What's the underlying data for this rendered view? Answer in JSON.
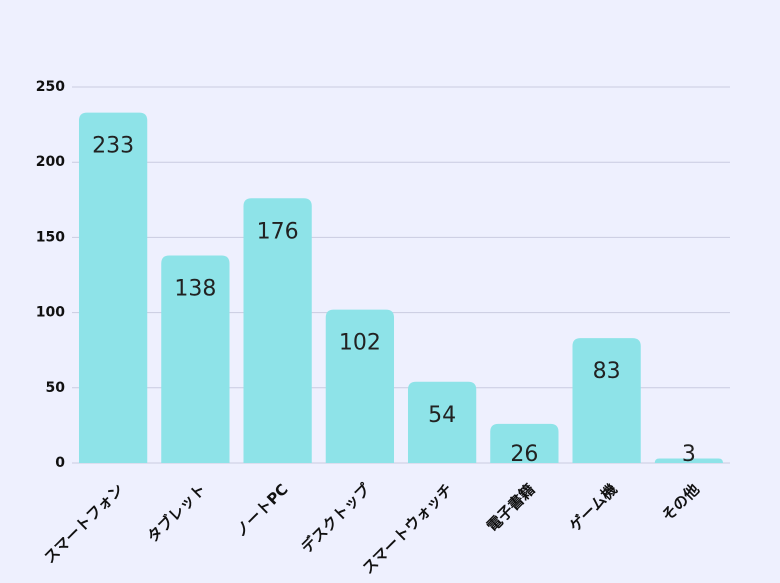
{
  "chart_data": {
    "type": "bar",
    "categories": [
      "スマートフォン",
      "タブレット",
      "ノートPC",
      "デスクトップ",
      "スマートウォッチ",
      "電子書籍",
      "ゲーム機",
      "その他"
    ],
    "values": [
      233,
      138,
      176,
      102,
      54,
      26,
      83,
      3
    ],
    "color": "#8ee3e8",
    "ylim": [
      0,
      250
    ],
    "yticks": [
      0,
      50,
      100,
      150,
      200,
      250
    ],
    "grid": true
  }
}
